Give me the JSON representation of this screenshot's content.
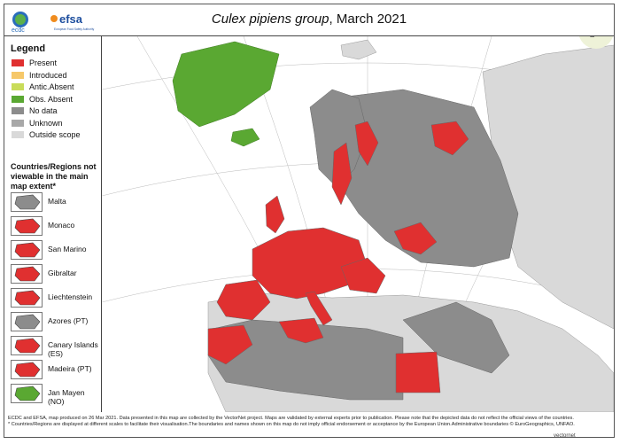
{
  "header": {
    "title_italic": "Culex pipiens group",
    "title_rest": ", March 2021",
    "ecdc_logo": "ecdc",
    "efsa_logo": "efsa",
    "efsa_tagline": "European Food Safety Authority"
  },
  "legend": {
    "title": "Legend",
    "items": [
      {
        "label": "Present",
        "color": "#e03030"
      },
      {
        "label": "Introduced",
        "color": "#f6c86a"
      },
      {
        "label": "Antic.Absent",
        "color": "#c9dc5a"
      },
      {
        "label": "Obs. Absent",
        "color": "#5aa832"
      },
      {
        "label": "No data",
        "color": "#8c8c8c"
      },
      {
        "label": "Unknown",
        "color": "#a8a8a8"
      },
      {
        "label": "Outside scope",
        "color": "#d9d9d9"
      }
    ]
  },
  "extent": {
    "title": "Countries/Regions not viewable in the main map extent*",
    "items": [
      {
        "label": "Malta",
        "color": "#8c8c8c"
      },
      {
        "label": "Monaco",
        "color": "#e03030"
      },
      {
        "label": "San Marino",
        "color": "#e03030"
      },
      {
        "label": "Gibraltar",
        "color": "#e03030"
      },
      {
        "label": "Liechtenstein",
        "color": "#e03030"
      },
      {
        "label": "Azores (PT)",
        "color": "#8c8c8c"
      },
      {
        "label": "Canary Islands (ES)",
        "color": "#e03030"
      },
      {
        "label": "Madeira (PT)",
        "color": "#e03030"
      },
      {
        "label": "Jan Mayen (NO)",
        "color": "#5aa832"
      }
    ]
  },
  "footer": {
    "line1": "ECDC and EFSA, map produced on 26 Mar 2021. Data presented in this map are collected by the VectorNet project. Maps are validated by external experts prior to publication. Please note that the depicted data do not reflect the official views of the countries.",
    "line2": "* Countries/Regions are displayed at different scales to facilitate their visualisation.The boundaries and names shown on this map do not imply official endorsement or acceptance by the European Union.Administrative boundaries © EuroGeographics, UNFAO.",
    "logo": "vectornet"
  },
  "colors": {
    "present": "#e03030",
    "nodata": "#8c8c8c",
    "outside": "#d9d9d9",
    "obs_absent": "#5aa832"
  }
}
